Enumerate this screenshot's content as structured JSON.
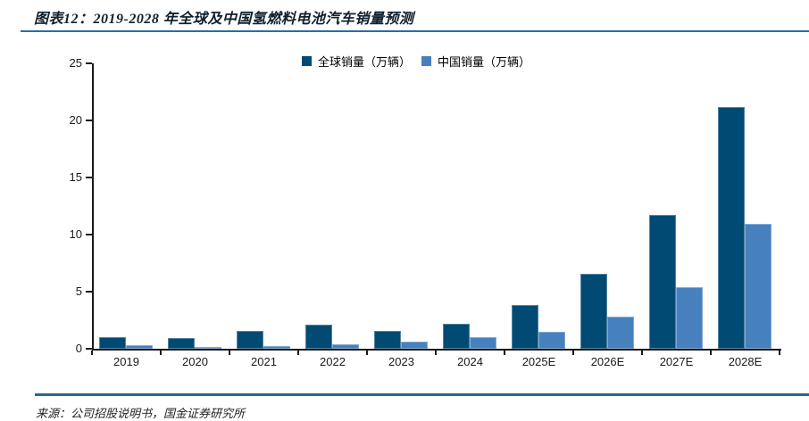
{
  "page": {
    "title": "图表12：2019-2028 年全球及中国氢燃料电池汽车销量预测",
    "source_note": "来源：公司招股说明书，国金证券研究所"
  },
  "colors": {
    "global_bar": "#004A73",
    "china_bar": "#4681BE",
    "title_underline": "#2B6CA8",
    "footer_rule": "#27678F",
    "axis": "#1A1A1A"
  },
  "chart_data": {
    "type": "bar",
    "title": "2019-2028 年全球及中国氢燃料电池汽车销量预测",
    "categories": [
      "2019",
      "2020",
      "2021",
      "2022",
      "2023",
      "2024",
      "2025E",
      "2026E",
      "2027E",
      "2028E"
    ],
    "series": [
      {
        "name": "全球销量（万辆）",
        "color": "#004A73",
        "values": [
          1.0,
          0.9,
          1.6,
          2.1,
          1.6,
          2.2,
          3.8,
          6.6,
          11.7,
          21.2
        ]
      },
      {
        "name": "中国销量（万辆）",
        "color": "#4681BE",
        "values": [
          0.3,
          0.15,
          0.2,
          0.4,
          0.6,
          1.0,
          1.5,
          2.8,
          5.4,
          10.9
        ]
      }
    ],
    "unit": "万辆",
    "xlabel": "",
    "ylabel": "",
    "y_ticks": [
      0,
      5,
      10,
      15,
      20,
      25
    ],
    "ylim": [
      0,
      25
    ],
    "grid": false,
    "legend_position": "top-center"
  }
}
